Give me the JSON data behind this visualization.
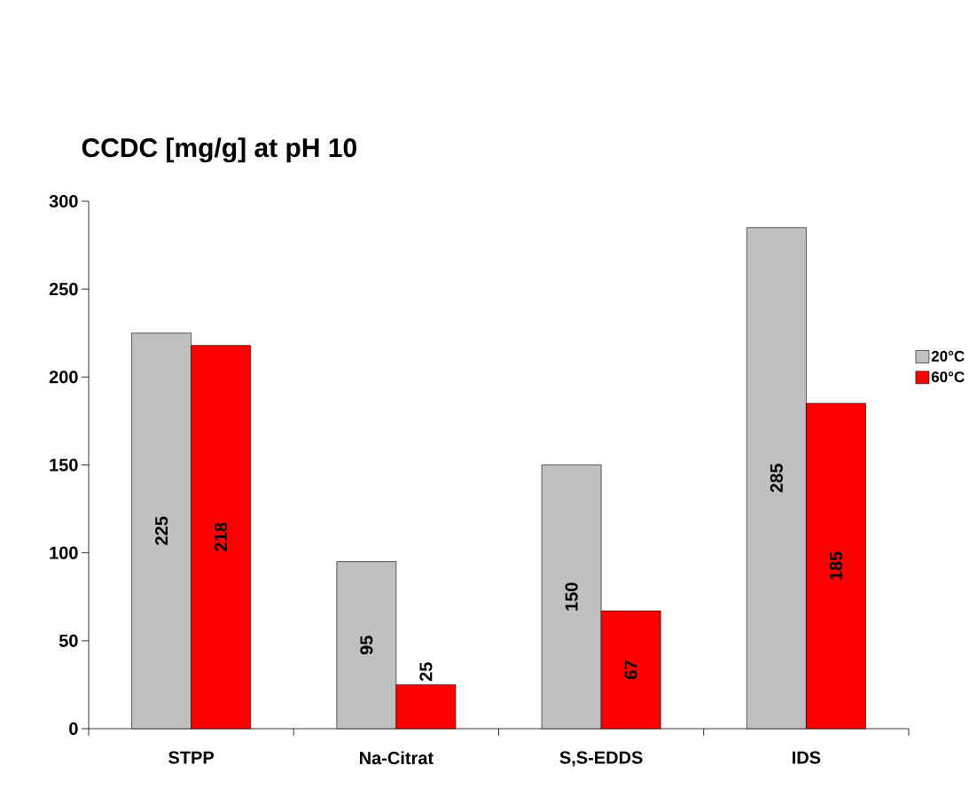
{
  "chart_data": {
    "type": "bar",
    "title": "CCDC [mg/g] at pH 10",
    "categories": [
      "STPP",
      "Na-Citrat",
      "S,S-EDDS",
      "IDS"
    ],
    "series": [
      {
        "name": "20°C",
        "color": "#c0c0c0",
        "values": [
          225,
          95,
          150,
          285
        ]
      },
      {
        "name": "60°C",
        "color": "#ff0000",
        "values": [
          218,
          25,
          67,
          185
        ]
      }
    ],
    "ylim": [
      0,
      300
    ],
    "yticks": [
      0,
      50,
      100,
      150,
      200,
      250,
      300
    ],
    "data_labels": true,
    "legend": "right",
    "grid": false
  }
}
